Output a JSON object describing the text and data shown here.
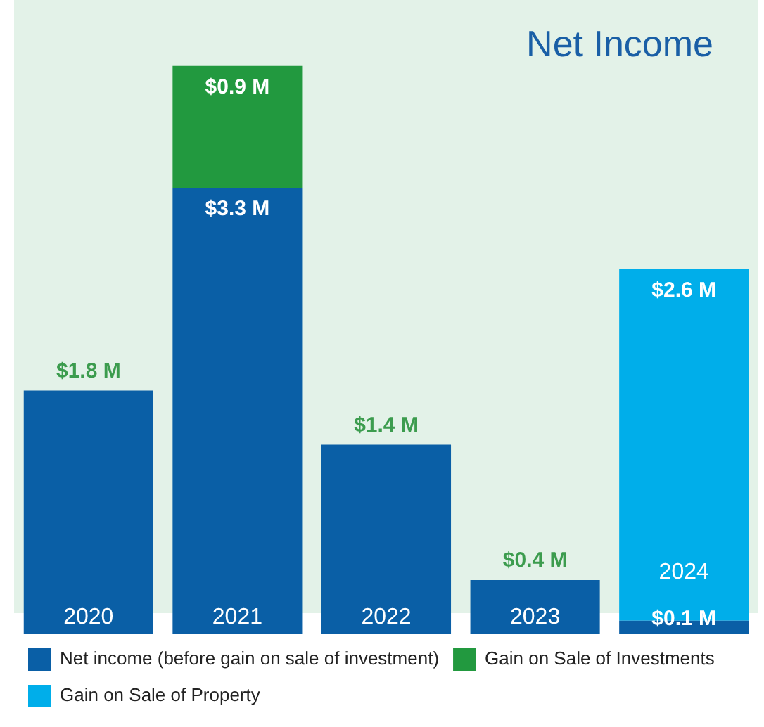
{
  "chart_data": {
    "type": "bar",
    "title": "Net Income",
    "stacked": true,
    "categories": [
      "2020",
      "2021",
      "2022",
      "2023",
      "2024"
    ],
    "series": [
      {
        "name": "Net income (before gain on sale of investment)",
        "color": "#0a5fa6",
        "values": [
          1.8,
          3.3,
          1.4,
          0.4,
          0.1
        ],
        "value_labels": [
          "$1.8 M",
          "$3.3 M",
          "$1.4 M",
          "$0.4 M",
          "$0.1 M"
        ]
      },
      {
        "name": "Gain on Sale of Investments",
        "color": "#22993f",
        "values": [
          null,
          0.9,
          null,
          null,
          null
        ],
        "value_labels": [
          null,
          "$0.9 M",
          null,
          null,
          null
        ]
      },
      {
        "name": "Gain on Sale of Property",
        "color": "#00aeea",
        "values": [
          null,
          null,
          null,
          null,
          2.6
        ],
        "value_labels": [
          null,
          null,
          null,
          null,
          "$2.6 M"
        ]
      }
    ],
    "legend": "bottom"
  }
}
